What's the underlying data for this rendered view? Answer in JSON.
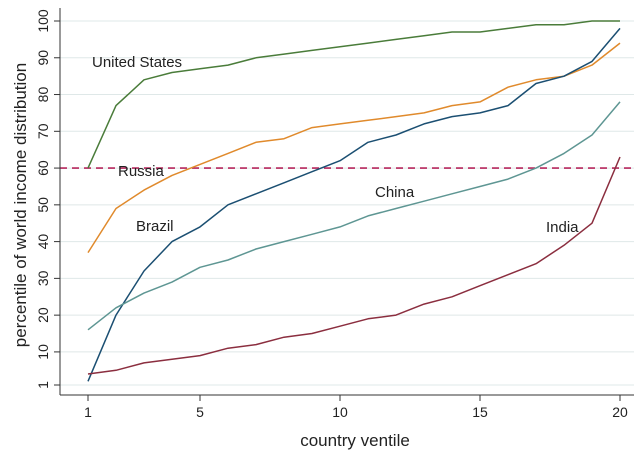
{
  "chart_data": {
    "type": "line",
    "xlabel": "country ventile",
    "ylabel": "percentile of world income distribution",
    "xlim": [
      1,
      20
    ],
    "ylim": [
      1,
      100
    ],
    "x_ticks": [
      "1",
      "5",
      "10",
      "15",
      "20"
    ],
    "y_ticks": [
      "1",
      "10",
      "20",
      "30",
      "40",
      "50",
      "60",
      "70",
      "80",
      "90",
      "100"
    ],
    "grid": true,
    "x": [
      1,
      2,
      3,
      4,
      5,
      6,
      7,
      8,
      9,
      10,
      11,
      12,
      13,
      14,
      15,
      16,
      17,
      18,
      19,
      20
    ],
    "series": [
      {
        "name": "United States",
        "color": "#4a7c3a",
        "values": [
          60,
          77,
          84,
          86,
          87,
          88,
          90,
          91,
          92,
          93,
          94,
          95,
          96,
          97,
          97,
          98,
          99,
          99,
          100,
          100
        ]
      },
      {
        "name": "",
        "color": "#e08a2c",
        "values": [
          37,
          49,
          54,
          58,
          61,
          64,
          67,
          68,
          71,
          72,
          73,
          74,
          75,
          77,
          78,
          82,
          84,
          85,
          88,
          94
        ]
      },
      {
        "name": "Brazil",
        "color": "#1b4f72",
        "values": [
          2,
          20,
          32,
          40,
          44,
          50,
          53,
          56,
          59,
          62,
          67,
          69,
          72,
          74,
          75,
          77,
          83,
          85,
          89,
          98
        ]
      },
      {
        "name": "China",
        "color": "#5e9693",
        "values": [
          16,
          22,
          26,
          29,
          33,
          35,
          38,
          40,
          42,
          44,
          47,
          49,
          51,
          53,
          55,
          57,
          60,
          64,
          69,
          78
        ]
      },
      {
        "name": "India",
        "color": "#8b2e3f",
        "values": [
          4,
          5,
          7,
          8,
          9,
          11,
          12,
          14,
          15,
          17,
          19,
          20,
          23,
          25,
          28,
          31,
          34,
          39,
          45,
          63
        ]
      }
    ],
    "reference_lines": [
      {
        "name": "Russia",
        "y": 60,
        "color": "#b5275c",
        "style": "dashed"
      }
    ]
  }
}
